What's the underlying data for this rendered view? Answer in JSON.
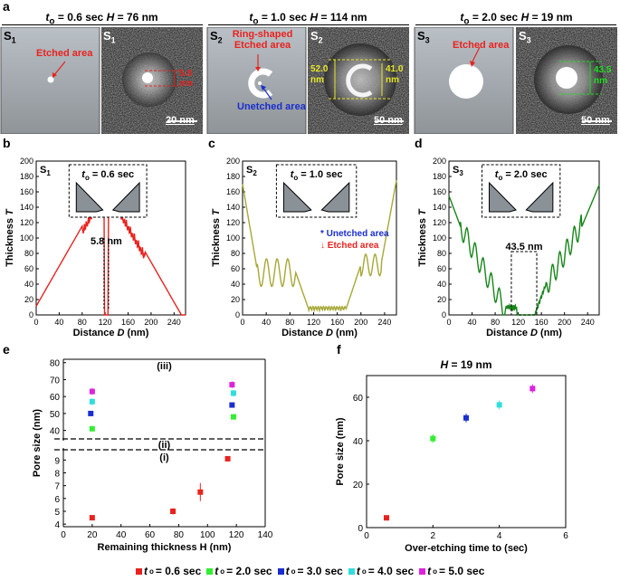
{
  "panel_labels": {
    "a": "a",
    "b": "b",
    "c": "c",
    "d": "d",
    "e": "e",
    "f": "f"
  },
  "a": {
    "headers": [
      {
        "prefix": "t",
        "sub": "o",
        "rest": " = 0.6 sec ",
        "H": "H",
        "val": " = 76 nm"
      },
      {
        "prefix": "t",
        "sub": "o",
        "rest": " = 1.0 sec ",
        "H": "H",
        "val": " = 114 nm"
      },
      {
        "prefix": "t",
        "sub": "o",
        "rest": " = 2.0 sec ",
        "H": "H",
        "val": " = 19 nm"
      }
    ],
    "s_labels": {
      "s1": "S",
      "s1sub": "1",
      "s2": "S",
      "s2sub": "2",
      "s3": "S",
      "s3sub": "3"
    },
    "etched_area": "Etched area",
    "ring_etched_1": "Ring-shaped",
    "ring_etched_2": "Etched area",
    "unetched_area": "Unetched area",
    "dim_s1": "5.8",
    "dim_s1_unit": "nm",
    "dim_s2_left": "52.0",
    "dim_s2_left_unit": "nm",
    "dim_s2_right": "41.0",
    "dim_s2_right_unit": "nm",
    "dim_s3": "43.5",
    "dim_s3_unit": "nm",
    "scale_1": "20 nm",
    "scale_2": "50 nm",
    "scale_3": "50 nm"
  },
  "profiles": {
    "xlabel": "Distance ",
    "xlabel_var": "D",
    "xlabel_unit": " (nm)",
    "ylabel": "Thickness ",
    "ylabel_var": "T",
    "xticks": [
      "0",
      "40",
      "80",
      "120",
      "160",
      "200",
      "240"
    ],
    "b": {
      "s": "S",
      "sub": "1",
      "inset": "t",
      "inset_sub": "o",
      "inset_rest": " = 0.6 sec",
      "yticks": [
        "0",
        "20",
        "40",
        "60",
        "80",
        "100",
        "120",
        "140",
        "160",
        "180",
        "200"
      ],
      "annot": "5.8 nm",
      "color": "#e8231f"
    },
    "c": {
      "s": "S",
      "sub": "2",
      "inset": "t",
      "inset_sub": "o",
      "inset_rest": " = 1.0 sec",
      "yticks": [
        "0",
        "20",
        "40",
        "60",
        "80",
        "100",
        "120",
        "140",
        "160",
        "180",
        "200"
      ],
      "legend_unetched": "Unetched area",
      "legend_etched": "Etched area",
      "color": "#a6a837"
    },
    "d": {
      "s": "S",
      "sub": "3",
      "inset": "t",
      "inset_sub": "o",
      "inset_rest": " = 2.0 sec",
      "yticks": [
        "0",
        "20",
        "40",
        "60",
        "80",
        "100",
        "120",
        "140",
        "160",
        "180",
        "200"
      ],
      "annot": "43.5 nm",
      "color": "#17861a"
    }
  },
  "chart_data": [
    {
      "type": "scatter",
      "title": "",
      "xlabel": "Remaining thickness H (nm)",
      "ylabel": "Pore size (nm)",
      "xlim": [
        0,
        140
      ],
      "xticks": [
        "0",
        "20",
        "40",
        "60",
        "80",
        "100",
        "120",
        "140"
      ],
      "yticks_low": [
        "4",
        "5",
        "6",
        "7",
        "8",
        "9"
      ],
      "yticks_high": [
        "40",
        "50",
        "60",
        "70",
        "80"
      ],
      "region_labels": [
        "(iii)",
        "(ii)",
        "(i)"
      ],
      "series": [
        {
          "name": "to = 0.6 sec",
          "color": "#e8231f",
          "points": [
            [
              20,
              4.5,
              0.2
            ],
            [
              76,
              5.0,
              0.25
            ],
            [
              95,
              6.5,
              0.7
            ],
            [
              114,
              9.1,
              0.1
            ]
          ]
        },
        {
          "name": "to = 2.0 sec",
          "color": "#33ee33",
          "points": [
            [
              20,
              41,
              1.5
            ],
            [
              118,
              48,
              1.0
            ]
          ]
        },
        {
          "name": "to = 3.0 sec",
          "color": "#1a2ecf",
          "points": [
            [
              19,
              50,
              1.0
            ],
            [
              117,
              55,
              1.0
            ]
          ]
        },
        {
          "name": "to = 4.0 sec",
          "color": "#33dddd",
          "points": [
            [
              20,
              57,
              2.0
            ],
            [
              118,
              62,
              2.0
            ]
          ]
        },
        {
          "name": "to = 5.0 sec",
          "color": "#dd22dd",
          "points": [
            [
              20,
              63,
              2.0
            ],
            [
              117,
              67,
              2.0
            ]
          ]
        }
      ]
    },
    {
      "type": "scatter",
      "title": "H = 19 nm",
      "title_var": "H",
      "title_rest": " = 19 nm",
      "xlabel": "Over-etching time to (sec)",
      "ylabel": "Pore size (nm)",
      "xlim": [
        0,
        6
      ],
      "ylim": [
        0,
        70
      ],
      "xticks": [
        "0",
        "2",
        "4",
        "6"
      ],
      "yticks": [
        "0",
        "20",
        "40",
        "60"
      ],
      "series": [
        {
          "name": "to = 0.6 sec",
          "color": "#e8231f",
          "points": [
            [
              0.6,
              4.5,
              0.5
            ]
          ]
        },
        {
          "name": "to = 2.0 sec",
          "color": "#33ee33",
          "points": [
            [
              2,
              41,
              2
            ]
          ]
        },
        {
          "name": "to = 3.0 sec",
          "color": "#1a2ecf",
          "points": [
            [
              3,
              50.5,
              2
            ]
          ]
        },
        {
          "name": "to = 4.0 sec",
          "color": "#33dddd",
          "points": [
            [
              4,
              56.5,
              2
            ]
          ]
        },
        {
          "name": "to = 5.0 sec",
          "color": "#dd22dd",
          "points": [
            [
              5,
              64,
              2
            ]
          ]
        }
      ]
    }
  ],
  "legend": [
    {
      "t": "t",
      "sub": "o",
      "rest": " = 0.6 sec",
      "color": "#e8231f"
    },
    {
      "t": "t",
      "sub": "o",
      "rest": " = 2.0 sec",
      "color": "#33ee33"
    },
    {
      "t": "t",
      "sub": "o",
      "rest": " = 3.0 sec",
      "color": "#1a2ecf"
    },
    {
      "t": "t",
      "sub": "o",
      "rest": " = 4.0 sec",
      "color": "#33dddd"
    },
    {
      "t": "t",
      "sub": "o",
      "rest": " = 5.0 sec",
      "color": "#dd22dd"
    }
  ]
}
